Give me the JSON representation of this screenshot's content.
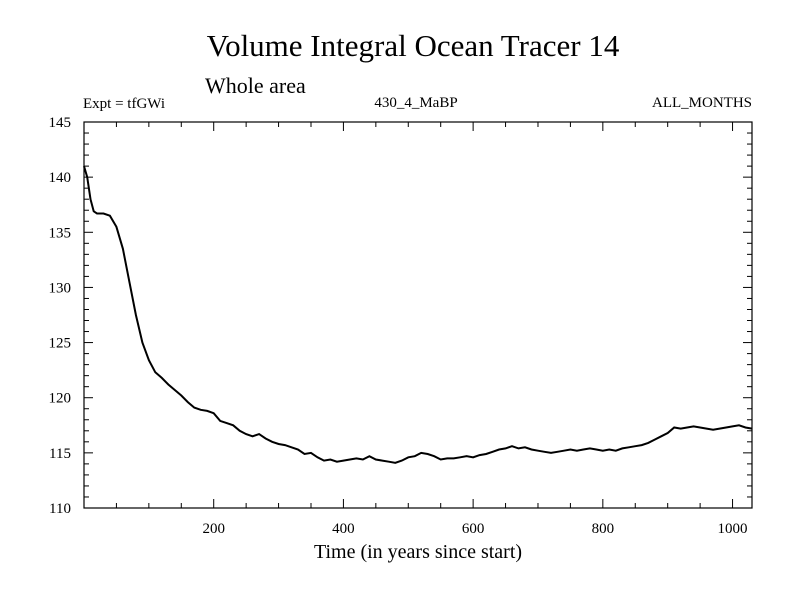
{
  "chart_data": {
    "type": "line",
    "title": "Volume Integral Ocean Tracer 14",
    "subtitle": "Whole area",
    "header_left": "Expt = tfGWi",
    "header_center": "430_4_MaBP",
    "header_right": "ALL_MONTHS",
    "xlabel": "Time (in years since start)",
    "ylabel": "",
    "xlim": [
      0,
      1030
    ],
    "ylim": [
      110,
      145
    ],
    "x_ticks": [
      200,
      400,
      600,
      800,
      1000
    ],
    "y_ticks": [
      110,
      115,
      120,
      125,
      130,
      135,
      140,
      145
    ],
    "x_tick_labels": [
      "200",
      "400",
      "600",
      "800",
      "1000"
    ],
    "y_tick_labels": [
      "110",
      "115",
      "120",
      "125",
      "130",
      "135",
      "140",
      "145"
    ],
    "grid": false,
    "line_color": "#000000",
    "series": [
      {
        "x": [
          0,
          5,
          10,
          15,
          20,
          30,
          40,
          50,
          60,
          70,
          80,
          90,
          100,
          110,
          120,
          130,
          140,
          150,
          160,
          170,
          180,
          190,
          200,
          210,
          220,
          230,
          240,
          250,
          260,
          270,
          280,
          290,
          300,
          310,
          320,
          330,
          340,
          350,
          360,
          370,
          380,
          390,
          400,
          410,
          420,
          430,
          440,
          450,
          460,
          470,
          480,
          490,
          500,
          510,
          520,
          530,
          540,
          550,
          560,
          570,
          580,
          590,
          600,
          610,
          620,
          630,
          640,
          650,
          660,
          670,
          680,
          690,
          700,
          710,
          720,
          730,
          740,
          750,
          760,
          770,
          780,
          790,
          800,
          810,
          820,
          830,
          840,
          850,
          860,
          870,
          880,
          890,
          900,
          910,
          920,
          930,
          940,
          950,
          960,
          970,
          980,
          990,
          1000,
          1010,
          1020,
          1030
        ],
        "values": [
          141.0,
          140.0,
          138.0,
          136.9,
          136.7,
          136.7,
          136.5,
          135.5,
          133.5,
          130.5,
          127.5,
          125.0,
          123.4,
          122.3,
          121.8,
          121.2,
          120.7,
          120.2,
          119.6,
          119.1,
          118.9,
          118.8,
          118.6,
          117.9,
          117.7,
          117.5,
          117.0,
          116.7,
          116.5,
          116.7,
          116.3,
          116.0,
          115.8,
          115.7,
          115.5,
          115.3,
          114.9,
          115.0,
          114.6,
          114.3,
          114.4,
          114.2,
          114.3,
          114.4,
          114.5,
          114.4,
          114.7,
          114.4,
          114.3,
          114.2,
          114.1,
          114.3,
          114.6,
          114.7,
          115.0,
          114.9,
          114.7,
          114.4,
          114.5,
          114.5,
          114.6,
          114.7,
          114.6,
          114.8,
          114.9,
          115.1,
          115.3,
          115.4,
          115.6,
          115.4,
          115.5,
          115.3,
          115.2,
          115.1,
          115.0,
          115.1,
          115.2,
          115.3,
          115.2,
          115.3,
          115.4,
          115.3,
          115.2,
          115.3,
          115.2,
          115.4,
          115.5,
          115.6,
          115.7,
          115.9,
          116.2,
          116.5,
          116.8,
          117.3,
          117.2,
          117.3,
          117.4,
          117.3,
          117.2,
          117.1,
          117.2,
          117.3,
          117.4,
          117.5,
          117.3,
          117.2
        ]
      }
    ]
  }
}
